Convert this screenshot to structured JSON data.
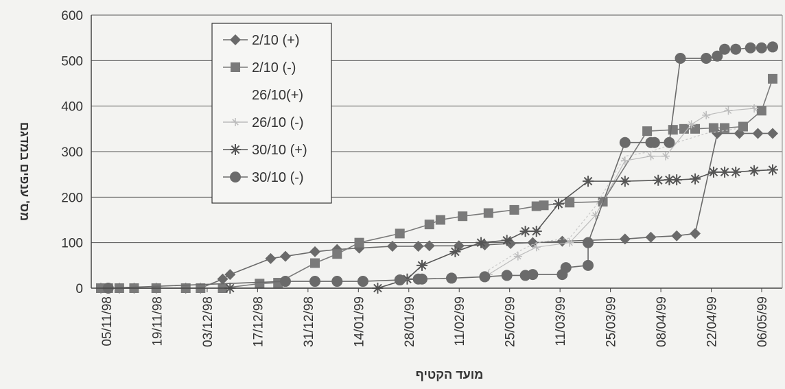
{
  "chart_data": {
    "type": "line",
    "ylabel": "מס' ענפים במדגם",
    "xlabel": "מועד הקטיף",
    "ylim": [
      0,
      600
    ],
    "yticks": [
      0,
      100,
      200,
      300,
      400,
      500,
      600
    ],
    "xticks": [
      "05/11/98",
      "19/11/98",
      "03/12/98",
      "17/12/98",
      "31/12/98",
      "14/01/99",
      "28/01/99",
      "11/02/99",
      "25/02/99",
      "11/03/99",
      "25/03/99",
      "08/04/99",
      "22/04/99",
      "06/05/99"
    ],
    "x_range": [
      "1998-11-05",
      "1999-05-06"
    ],
    "grid": "horizontal",
    "legend_position": "top-left inside",
    "series": [
      {
        "name": "2/10 (+)",
        "marker": "diamond",
        "color": "#6a6a6a",
        "points": [
          [
            "1998-11-05",
            0
          ],
          [
            "1998-11-07",
            0
          ],
          [
            "1998-11-10",
            0
          ],
          [
            "1998-11-14",
            0
          ],
          [
            "1998-11-20",
            0
          ],
          [
            "1998-11-28",
            0
          ],
          [
            "1998-12-02",
            0
          ],
          [
            "1998-12-08",
            20
          ],
          [
            "1998-12-10",
            30
          ],
          [
            "1998-12-21",
            65
          ],
          [
            "1998-12-25",
            70
          ],
          [
            "1999-01-02",
            80
          ],
          [
            "1999-01-08",
            85
          ],
          [
            "1999-01-14",
            88
          ],
          [
            "1999-01-23",
            92
          ],
          [
            "1999-01-30",
            92
          ],
          [
            "1999-02-02",
            93
          ],
          [
            "1999-02-10",
            93
          ],
          [
            "1999-02-17",
            95
          ],
          [
            "1999-02-24",
            98
          ],
          [
            "1999-03-02",
            100
          ],
          [
            "1999-03-10",
            103
          ],
          [
            "1999-03-27",
            108
          ],
          [
            "1999-04-03",
            112
          ],
          [
            "1999-04-10",
            115
          ],
          [
            "1999-04-15",
            120
          ],
          [
            "1999-04-21",
            340
          ],
          [
            "1999-04-27",
            340
          ],
          [
            "1999-05-02",
            340
          ],
          [
            "1999-05-06",
            340
          ]
        ]
      },
      {
        "name": "2/10 (-)",
        "marker": "square",
        "color": "#7a7a7a",
        "points": [
          [
            "1998-11-05",
            0
          ],
          [
            "1998-11-07",
            0
          ],
          [
            "1998-11-10",
            0
          ],
          [
            "1998-11-14",
            0
          ],
          [
            "1998-11-20",
            0
          ],
          [
            "1998-11-28",
            0
          ],
          [
            "1998-12-02",
            0
          ],
          [
            "1998-12-08",
            0
          ],
          [
            "1998-12-18",
            10
          ],
          [
            "1998-12-23",
            12
          ],
          [
            "1999-01-02",
            55
          ],
          [
            "1999-01-08",
            75
          ],
          [
            "1999-01-14",
            100
          ],
          [
            "1999-01-25",
            120
          ],
          [
            "1999-02-02",
            140
          ],
          [
            "1999-02-05",
            150
          ],
          [
            "1999-02-11",
            158
          ],
          [
            "1999-02-18",
            165
          ],
          [
            "1999-02-25",
            172
          ],
          [
            "1999-03-03",
            180
          ],
          [
            "1999-03-05",
            182
          ],
          [
            "1999-03-12",
            188
          ],
          [
            "1999-03-21",
            190
          ],
          [
            "1999-04-02",
            345
          ],
          [
            "1999-04-09",
            348
          ],
          [
            "1999-04-12",
            350
          ],
          [
            "1999-04-15",
            350
          ],
          [
            "1999-04-20",
            352
          ],
          [
            "1999-04-23",
            352
          ],
          [
            "1999-04-28",
            355
          ],
          [
            "1999-05-03",
            390
          ],
          [
            "1999-05-06",
            460
          ]
        ]
      },
      {
        "name": "26/10(+)",
        "marker": "none",
        "color": "#c8c8c8",
        "points": [
          [
            "1999-02-18",
            40
          ],
          [
            "1999-02-26",
            80
          ],
          [
            "1999-03-03",
            100
          ],
          [
            "1999-03-12",
            110
          ],
          [
            "1999-03-19",
            180
          ],
          [
            "1999-03-27",
            290
          ],
          [
            "1999-04-03",
            300
          ],
          [
            "1999-04-10",
            320
          ],
          [
            "1999-04-18",
            340
          ],
          [
            "1999-04-26",
            350
          ]
        ]
      },
      {
        "name": "26/10 (-)",
        "marker": "faint-star",
        "color": "#bcbcbc",
        "points": [
          [
            "1999-02-18",
            30
          ],
          [
            "1999-02-26",
            70
          ],
          [
            "1999-03-03",
            90
          ],
          [
            "1999-03-12",
            100
          ],
          [
            "1999-03-19",
            160
          ],
          [
            "1999-03-27",
            280
          ],
          [
            "1999-04-03",
            290
          ],
          [
            "1999-04-07",
            290
          ],
          [
            "1999-04-14",
            360
          ],
          [
            "1999-04-18",
            380
          ],
          [
            "1999-04-24",
            390
          ],
          [
            "1999-05-01",
            395
          ]
        ]
      },
      {
        "name": "30/10 (+)",
        "marker": "asterisk",
        "color": "#555555",
        "points": [
          [
            "1998-12-10",
            0
          ],
          [
            "1999-01-19",
            0
          ],
          [
            "1999-01-27",
            20
          ],
          [
            "1999-01-31",
            50
          ],
          [
            "1999-02-09",
            80
          ],
          [
            "1999-02-16",
            100
          ],
          [
            "1999-02-23",
            105
          ],
          [
            "1999-02-28",
            125
          ],
          [
            "1999-03-03",
            125
          ],
          [
            "1999-03-09",
            185
          ],
          [
            "1999-03-17",
            235
          ],
          [
            "1999-03-27",
            235
          ],
          [
            "1999-04-05",
            237
          ],
          [
            "1999-04-08",
            238
          ],
          [
            "1999-04-10",
            238
          ],
          [
            "1999-04-15",
            240
          ],
          [
            "1999-04-20",
            255
          ],
          [
            "1999-04-23",
            255
          ],
          [
            "1999-04-26",
            255
          ],
          [
            "1999-05-01",
            258
          ],
          [
            "1999-05-06",
            260
          ]
        ]
      },
      {
        "name": "30/10 (-)",
        "marker": "circle",
        "color": "#6a6a6a",
        "points": [
          [
            "1998-11-07",
            0
          ],
          [
            "1998-12-25",
            15
          ],
          [
            "1999-01-02",
            15
          ],
          [
            "1999-01-08",
            15
          ],
          [
            "1999-01-15",
            15
          ],
          [
            "1999-01-25",
            18
          ],
          [
            "1999-01-30",
            20
          ],
          [
            "1999-01-31",
            20
          ],
          [
            "1999-02-08",
            22
          ],
          [
            "1999-02-17",
            25
          ],
          [
            "1999-02-23",
            28
          ],
          [
            "1999-02-28",
            28
          ],
          [
            "1999-03-02",
            30
          ],
          [
            "1999-03-10",
            30
          ],
          [
            "1999-03-11",
            45
          ],
          [
            "1999-03-17",
            50
          ],
          [
            "1999-03-17",
            100
          ],
          [
            "1999-03-27",
            320
          ],
          [
            "1999-04-03",
            320
          ],
          [
            "1999-04-04",
            320
          ],
          [
            "1999-04-08",
            320
          ],
          [
            "1999-04-11",
            505
          ],
          [
            "1999-04-18",
            505
          ],
          [
            "1999-04-21",
            510
          ],
          [
            "1999-04-23",
            525
          ],
          [
            "1999-04-26",
            525
          ],
          [
            "1999-04-30",
            528
          ],
          [
            "1999-05-03",
            528
          ],
          [
            "1999-05-06",
            530
          ]
        ]
      }
    ]
  }
}
